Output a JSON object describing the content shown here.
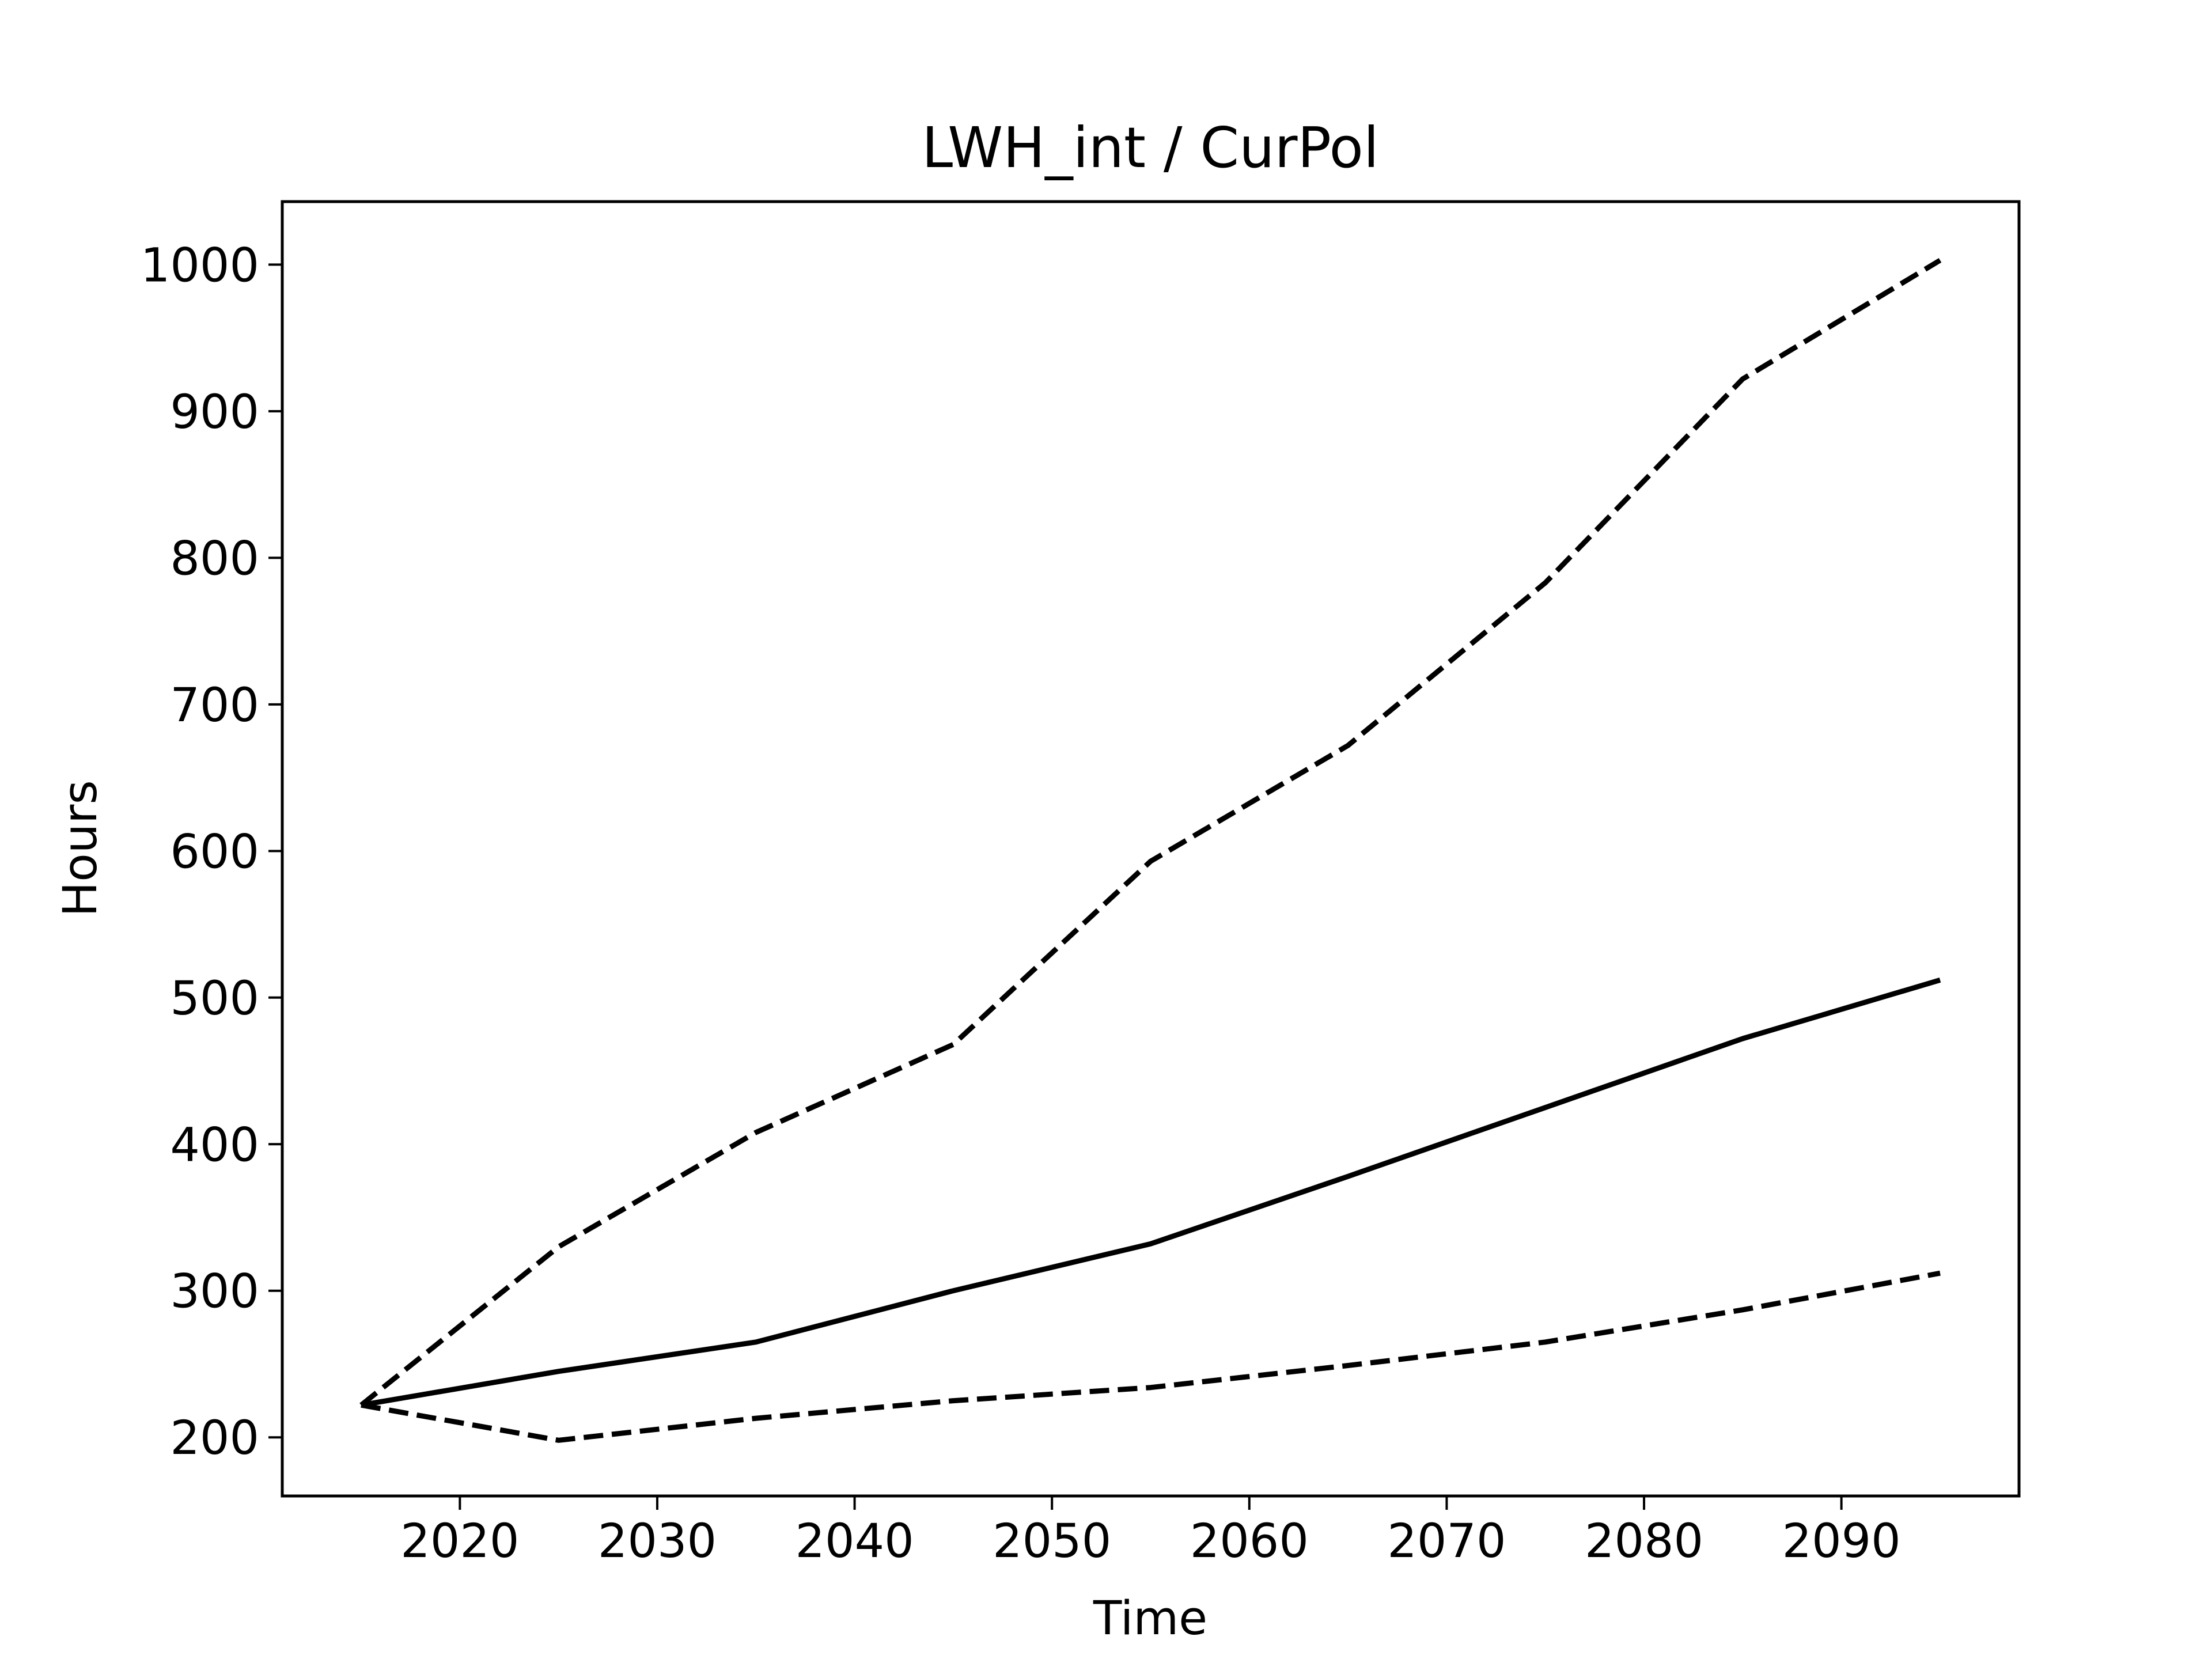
{
  "chart_data": {
    "type": "line",
    "title": "LWH_int / CurPol",
    "xlabel": "Time",
    "ylabel": "Hours",
    "xlim": [
      2011,
      2099
    ],
    "ylim": [
      160,
      1043
    ],
    "xticks": [
      2020,
      2030,
      2040,
      2050,
      2060,
      2070,
      2080,
      2090
    ],
    "yticks": [
      200,
      300,
      400,
      500,
      600,
      700,
      800,
      900,
      1000
    ],
    "grid": false,
    "legend": "none",
    "line_color": "#000000",
    "series": [
      {
        "style": "dashed",
        "x": [
          2015,
          2025,
          2035,
          2045,
          2055,
          2065,
          2075,
          2085,
          2095
        ],
        "y": [
          222,
          330,
          408,
          468,
          593,
          672,
          783,
          922,
          1003
        ]
      },
      {
        "style": "solid",
        "x": [
          2015,
          2025,
          2035,
          2045,
          2055,
          2065,
          2075,
          2085,
          2095
        ],
        "y": [
          222,
          245,
          265,
          300,
          332,
          378,
          425,
          472,
          512
        ]
      },
      {
        "style": "dashed",
        "x": [
          2015,
          2025,
          2035,
          2045,
          2055,
          2065,
          2075,
          2085,
          2095
        ],
        "y": [
          222,
          198,
          213,
          225,
          234,
          249,
          265,
          287,
          312
        ]
      }
    ]
  }
}
